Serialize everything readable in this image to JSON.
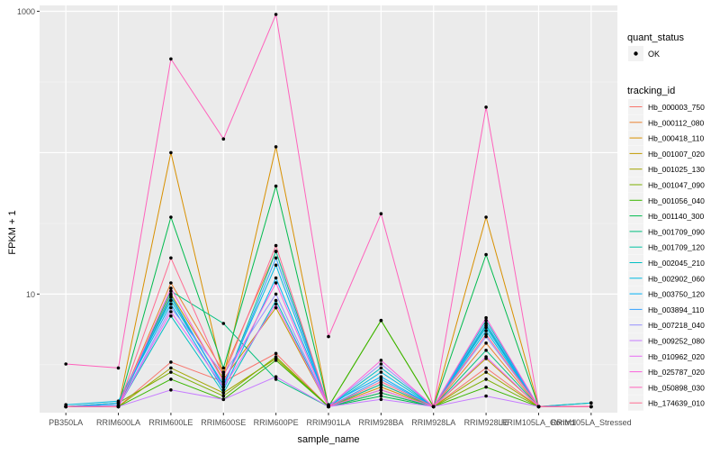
{
  "chart_data": {
    "type": "line",
    "title": "",
    "xlabel": "sample_name",
    "ylabel": "FPKM + 1",
    "log_scale_y": true,
    "ylim": [
      1.45,
      1100
    ],
    "grid": true,
    "legend_position": "right",
    "y_ticks": [
      {
        "value": 10,
        "label": "10"
      },
      {
        "value": 1000,
        "label": "1000"
      }
    ],
    "categories": [
      "PB350LA",
      "RRIM600LA",
      "RRIM600LE",
      "RRIM600SE",
      "RRIM600PE",
      "RRIM901LA",
      "RRIM928BA",
      "RRIM928LA",
      "RRIM928LE",
      "RRIM105LA_Control",
      "RRIM105LA_Stressed"
    ],
    "legend": {
      "quant_status_title": "quant_status",
      "quant_status_item": "OK",
      "tracking_title": "tracking_id"
    },
    "series": [
      {
        "name": "Hb_000003_750",
        "color": "#F8766D",
        "values": [
          1.6,
          1.6,
          3.3,
          2.4,
          3.8,
          1.6,
          2.0,
          1.6,
          3.0,
          1.6,
          1.6
        ]
      },
      {
        "name": "Hb_000112_080",
        "color": "#EA8331",
        "values": [
          1.6,
          1.6,
          12.0,
          2.8,
          20.0,
          1.6,
          2.3,
          1.6,
          4.5,
          1.6,
          1.6
        ]
      },
      {
        "name": "Hb_000418_110",
        "color": "#D89000",
        "values": [
          1.6,
          1.6,
          100.0,
          2.6,
          110.0,
          1.6,
          2.2,
          1.6,
          35.0,
          1.6,
          1.6
        ]
      },
      {
        "name": "Hb_001007_020",
        "color": "#C09B00",
        "values": [
          1.6,
          1.6,
          10.0,
          2.5,
          8.0,
          1.6,
          2.1,
          1.6,
          3.5,
          1.6,
          1.6
        ]
      },
      {
        "name": "Hb_001025_130",
        "color": "#A3A500",
        "values": [
          1.6,
          1.6,
          3.0,
          2.0,
          3.5,
          1.6,
          2.0,
          1.6,
          2.8,
          1.6,
          1.6
        ]
      },
      {
        "name": "Hb_001047_090",
        "color": "#7CAE00",
        "values": [
          1.6,
          1.7,
          2.8,
          1.9,
          3.6,
          1.6,
          6.5,
          1.6,
          2.5,
          1.6,
          1.6
        ]
      },
      {
        "name": "Hb_001056_040",
        "color": "#39B600",
        "values": [
          1.6,
          1.6,
          2.5,
          1.8,
          3.4,
          1.6,
          6.5,
          1.6,
          2.2,
          1.6,
          1.7
        ]
      },
      {
        "name": "Hb_001140_300",
        "color": "#00BB4E",
        "values": [
          1.6,
          1.6,
          35.0,
          3.0,
          58.0,
          1.6,
          1.9,
          1.6,
          19.0,
          1.6,
          1.6
        ]
      },
      {
        "name": "Hb_001709_090",
        "color": "#00BF7D",
        "values": [
          1.6,
          1.6,
          10.5,
          6.2,
          2.5,
          1.6,
          2.0,
          1.6,
          4.0,
          1.6,
          1.6
        ]
      },
      {
        "name": "Hb_001709_120",
        "color": "#00C1A3",
        "values": [
          1.6,
          1.6,
          9.5,
          2.2,
          20.0,
          1.6,
          2.3,
          1.6,
          6.0,
          1.6,
          1.6
        ]
      },
      {
        "name": "Hb_002045_210",
        "color": "#00BFC4",
        "values": [
          1.6,
          1.6,
          7.0,
          2.0,
          9.0,
          1.6,
          3.0,
          1.6,
          6.5,
          1.6,
          1.6
        ]
      },
      {
        "name": "Hb_002902_060",
        "color": "#00BAE0",
        "values": [
          1.65,
          1.75,
          9.0,
          2.3,
          16.0,
          1.6,
          2.8,
          1.6,
          5.5,
          1.6,
          1.7
        ]
      },
      {
        "name": "Hb_003750_120",
        "color": "#00B0F6",
        "values": [
          1.6,
          1.7,
          8.5,
          2.1,
          13.0,
          1.65,
          2.6,
          1.6,
          5.8,
          1.6,
          1.6
        ]
      },
      {
        "name": "Hb_003894_110",
        "color": "#35A2FF",
        "values": [
          1.6,
          1.65,
          9.8,
          2.2,
          18.0,
          1.6,
          2.5,
          1.6,
          6.2,
          1.6,
          1.6
        ]
      },
      {
        "name": "Hb_007218_040",
        "color": "#9590FF",
        "values": [
          1.6,
          1.6,
          8.0,
          2.7,
          10.0,
          1.6,
          3.2,
          1.6,
          5.0,
          1.6,
          1.6
        ]
      },
      {
        "name": "Hb_009252_080",
        "color": "#C77CFF",
        "values": [
          1.6,
          1.6,
          2.1,
          1.8,
          2.6,
          1.6,
          1.8,
          1.6,
          1.9,
          1.6,
          1.6
        ]
      },
      {
        "name": "Hb_010962_020",
        "color": "#E76BF3",
        "values": [
          1.6,
          1.6,
          7.5,
          2.2,
          8.5,
          1.6,
          2.1,
          1.6,
          3.6,
          1.6,
          1.6
        ]
      },
      {
        "name": "Hb_025787_020",
        "color": "#FA62DB",
        "values": [
          1.6,
          1.6,
          11.0,
          2.4,
          12.0,
          1.6,
          3.4,
          1.6,
          6.8,
          1.6,
          1.6
        ]
      },
      {
        "name": "Hb_050898_030",
        "color": "#FF62BC",
        "values": [
          3.2,
          3.0,
          460.0,
          125.0,
          950.0,
          5.0,
          37.0,
          1.6,
          210.0,
          1.6,
          1.6
        ]
      },
      {
        "name": "Hb_174639_010",
        "color": "#FF6C91",
        "values": [
          1.6,
          1.6,
          18.0,
          2.6,
          22.0,
          1.6,
          2.4,
          1.6,
          5.2,
          1.6,
          1.6
        ]
      }
    ]
  }
}
